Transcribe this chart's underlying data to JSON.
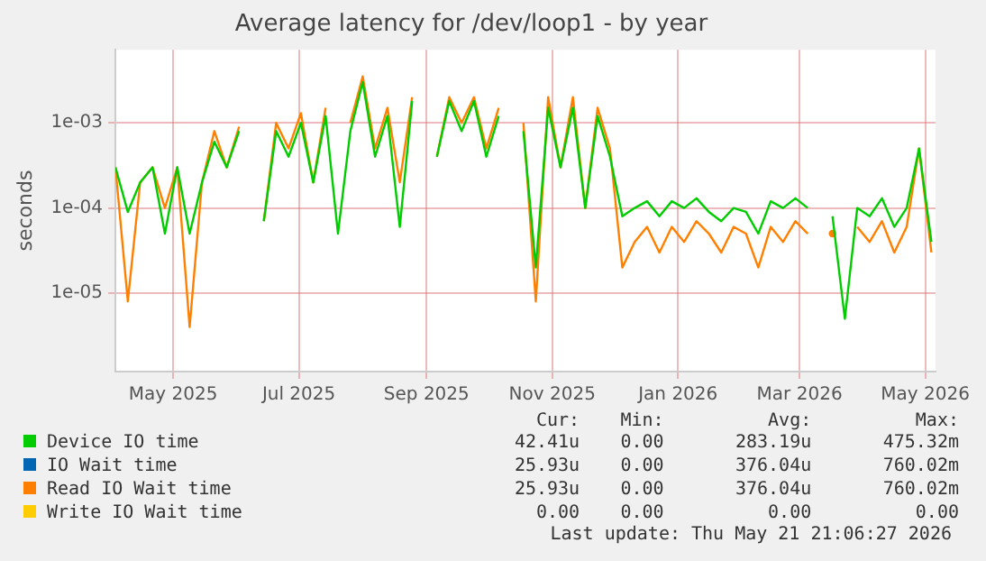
{
  "chart_data": {
    "type": "line",
    "title": "Average latency for /dev/loop1 - by year",
    "ylabel": "seconds",
    "log": "y",
    "grid": true,
    "legend": "bottom",
    "marker": "none",
    "line_style": "solid",
    "xlim": [
      "2025-04-03",
      "2026-05-06"
    ],
    "xticks": [
      {
        "value": "2025-05-01",
        "label": "May 2025"
      },
      {
        "value": "2025-07-01",
        "label": "Jul 2025"
      },
      {
        "value": "2025-09-01",
        "label": "Sep 2025"
      },
      {
        "value": "2025-11-01",
        "label": "Nov 2025"
      },
      {
        "value": "2026-01-01",
        "label": "Jan 2026"
      },
      {
        "value": "2026-03-01",
        "label": "Mar 2026"
      },
      {
        "value": "2026-05-01",
        "label": "May 2026"
      }
    ],
    "ylim": [
      1.2e-06,
      0.0072
    ],
    "yticks": [
      {
        "value": 1e-05,
        "label": "1e-05"
      },
      {
        "value": 0.0001,
        "label": "1e-04"
      },
      {
        "value": 0.001,
        "label": "1e-03"
      }
    ],
    "x": [
      "2025-04-03",
      "2025-04-09",
      "2025-04-15",
      "2025-04-21",
      "2025-04-27",
      "2025-05-03",
      "2025-05-09",
      "2025-05-15",
      "2025-05-21",
      "2025-05-27",
      "2025-06-02",
      "2025-06-08",
      "2025-06-14",
      "2025-06-20",
      "2025-06-26",
      "2025-07-02",
      "2025-07-08",
      "2025-07-14",
      "2025-07-20",
      "2025-07-26",
      "2025-08-01",
      "2025-08-07",
      "2025-08-13",
      "2025-08-19",
      "2025-08-25",
      "2025-08-31",
      "2025-09-06",
      "2025-09-12",
      "2025-09-18",
      "2025-09-24",
      "2025-09-30",
      "2025-10-06",
      "2025-10-12",
      "2025-10-18",
      "2025-10-24",
      "2025-10-30",
      "2025-11-05",
      "2025-11-11",
      "2025-11-17",
      "2025-11-23",
      "2025-11-29",
      "2025-12-05",
      "2025-12-11",
      "2025-12-17",
      "2025-12-23",
      "2025-12-29",
      "2026-01-04",
      "2026-01-10",
      "2026-01-16",
      "2026-01-22",
      "2026-01-28",
      "2026-02-03",
      "2026-02-09",
      "2026-02-15",
      "2026-02-21",
      "2026-02-27",
      "2026-03-05",
      "2026-03-11",
      "2026-03-17",
      "2026-03-23",
      "2026-03-29",
      "2026-04-04",
      "2026-04-10",
      "2026-04-16",
      "2026-04-22",
      "2026-04-28",
      "2026-05-04"
    ],
    "series": [
      {
        "name": "Device IO time",
        "color": "#00cc00",
        "values": [
          0.0003,
          9e-05,
          0.0002,
          0.0003,
          5e-05,
          0.0003,
          5e-05,
          0.0002,
          0.0006,
          0.0003,
          0.0008,
          null,
          7e-05,
          0.0008,
          0.0004,
          0.001,
          0.0002,
          0.0012,
          5e-05,
          0.0008,
          0.003,
          0.0004,
          0.0012,
          6e-05,
          0.0018,
          null,
          0.0004,
          0.0018,
          0.0008,
          0.0018,
          0.0004,
          0.0012,
          null,
          0.0008,
          2e-05,
          0.0015,
          0.0003,
          0.0015,
          0.0001,
          0.0012,
          0.0004,
          8e-05,
          0.0001,
          0.00012,
          8e-05,
          0.00012,
          0.0001,
          0.00013,
          9e-05,
          7e-05,
          0.0001,
          9e-05,
          5e-05,
          0.00012,
          0.0001,
          0.00013,
          0.0001,
          null,
          8e-05,
          5e-06,
          0.0001,
          8e-05,
          0.00013,
          6e-05,
          0.0001,
          0.0005,
          4e-05
        ]
      },
      {
        "name": "IO Wait time",
        "color": "#0066b3",
        "values": [
          null,
          null,
          null,
          null,
          null,
          null,
          null,
          null,
          null,
          null,
          null,
          null,
          null,
          null,
          null,
          null,
          null,
          null,
          null,
          null,
          null,
          null,
          null,
          null,
          null,
          null,
          null,
          null,
          null,
          null,
          null,
          null,
          null,
          null,
          null,
          null,
          null,
          null,
          null,
          null,
          null,
          null,
          null,
          null,
          null,
          null,
          null,
          null,
          null,
          null,
          null,
          null,
          null,
          null,
          null,
          null,
          null,
          null,
          null,
          null,
          null,
          null,
          null,
          null,
          null,
          null,
          null
        ]
      },
      {
        "name": "Read IO Wait time",
        "color": "#ff8000",
        "values": [
          0.0003,
          8e-06,
          0.0002,
          0.0003,
          0.0001,
          0.0003,
          4e-06,
          0.0002,
          0.0008,
          0.0003,
          0.0009,
          null,
          7e-05,
          0.001,
          0.0005,
          0.0013,
          0.0002,
          0.0015,
          null,
          0.001,
          0.0035,
          0.0005,
          0.0015,
          0.0002,
          0.002,
          null,
          0.0004,
          0.002,
          0.001,
          0.002,
          0.0005,
          0.0015,
          null,
          0.001,
          8e-06,
          0.002,
          0.0003,
          0.002,
          0.0001,
          0.0015,
          0.0005,
          2e-05,
          4e-05,
          6e-05,
          3e-05,
          6e-05,
          4e-05,
          7e-05,
          5e-05,
          3e-05,
          6e-05,
          5e-05,
          2e-05,
          6e-05,
          4e-05,
          7e-05,
          5e-05,
          null,
          5e-05,
          null,
          6e-05,
          4e-05,
          7e-05,
          3e-05,
          6e-05,
          0.0005,
          3e-05
        ]
      },
      {
        "name": "Write IO Wait time",
        "color": "#ffcc00",
        "values": [
          null,
          null,
          null,
          null,
          null,
          null,
          null,
          null,
          null,
          null,
          null,
          null,
          null,
          null,
          null,
          null,
          null,
          null,
          null,
          null,
          null,
          null,
          null,
          null,
          null,
          null,
          null,
          null,
          null,
          null,
          null,
          null,
          null,
          null,
          null,
          null,
          null,
          null,
          null,
          null,
          null,
          null,
          null,
          null,
          null,
          null,
          null,
          null,
          null,
          null,
          null,
          null,
          null,
          null,
          null,
          null,
          null,
          null,
          null,
          null,
          null,
          null,
          null,
          null,
          null,
          null,
          null
        ]
      }
    ],
    "annotations": [
      "Cur:",
      "Min:",
      "Avg:",
      "Max:",
      "42.41u",
      "0.00",
      "283.19u",
      "475.32m",
      "25.93u",
      "0.00",
      "376.04u",
      "760.02m",
      "25.93u",
      "0.00",
      "376.04u",
      "760.02m",
      "0.00",
      "0.00",
      "0.00",
      "0.00",
      "Last update: Thu May 21 21:06:27 2026"
    ]
  }
}
